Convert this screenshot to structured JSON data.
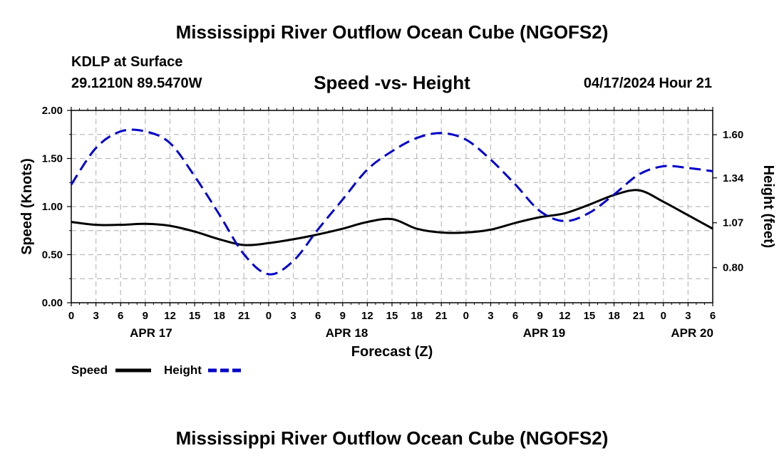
{
  "header": {
    "title": "Mississippi River Outflow Ocean Cube (NGOFS2)",
    "station": "KDLP at Surface",
    "coordinates": "29.1210N  89.5470W",
    "chart_title": "Speed -vs- Height",
    "datetime": "04/17/2024 Hour 21"
  },
  "footer": {
    "title": "Mississippi River Outflow Ocean Cube (NGOFS2)"
  },
  "chart_data": {
    "type": "line",
    "title": "Speed -vs- Height",
    "xlabel": "Forecast (Z)",
    "ylabel": "Speed (Knots)",
    "y2label": "Height (feet)",
    "x_range_hours": [
      0,
      78
    ],
    "ylim": [
      0,
      2
    ],
    "y2lim": [
      0.5886,
      1.7463
    ],
    "yticks": [
      0,
      0.5,
      1,
      1.5,
      2
    ],
    "ytick_labels": [
      "0.00",
      "0.50",
      "1.00",
      "1.50",
      "2.00"
    ],
    "y2ticks": [
      0.8,
      1.07,
      1.34,
      1.6
    ],
    "y2tick_labels": [
      "0.80",
      "1.07",
      "1.34",
      "1.60"
    ],
    "xticks_hours": [
      0,
      3,
      6,
      9,
      12,
      15,
      18,
      21,
      24,
      27,
      30,
      33,
      36,
      39,
      42,
      45,
      48,
      51,
      54,
      57,
      60,
      63,
      66,
      69,
      72,
      75,
      78
    ],
    "xtick_labels": [
      "0",
      "3",
      "6",
      "9",
      "12",
      "15",
      "18",
      "21",
      "0",
      "3",
      "6",
      "9",
      "12",
      "15",
      "18",
      "21",
      "0",
      "3",
      "6",
      "9",
      "12",
      "15",
      "18",
      "21",
      "0",
      "3",
      "6"
    ],
    "date_labels": [
      {
        "label": "APR 17",
        "hour": 9.7
      },
      {
        "label": "APR 18",
        "hour": 33.5
      },
      {
        "label": "APR 19",
        "hour": 57.5
      },
      {
        "label": "APR 20",
        "hour": 75.5
      }
    ],
    "grid": true,
    "legend_position": "bottom-left",
    "series": [
      {
        "name": "Speed",
        "axis": "left",
        "color": "#000000",
        "dash": "solid",
        "x": [
          0,
          3,
          6,
          9,
          12,
          15,
          18,
          21,
          24,
          27,
          30,
          33,
          36,
          39,
          42,
          45,
          48,
          51,
          54,
          57,
          60,
          63,
          66,
          69,
          72,
          75,
          78
        ],
        "values": [
          0.84,
          0.81,
          0.81,
          0.82,
          0.8,
          0.74,
          0.66,
          0.6,
          0.62,
          0.66,
          0.71,
          0.77,
          0.84,
          0.87,
          0.77,
          0.73,
          0.73,
          0.76,
          0.83,
          0.89,
          0.93,
          1.02,
          1.12,
          1.17,
          1.05,
          0.91,
          0.77
        ]
      },
      {
        "name": "Height",
        "axis": "right",
        "color": "#0000cc",
        "dash": "dashed",
        "x": [
          0,
          3,
          6,
          9,
          12,
          15,
          18,
          21,
          24,
          27,
          30,
          33,
          36,
          39,
          42,
          45,
          48,
          51,
          54,
          57,
          60,
          63,
          66,
          69,
          72,
          75,
          78
        ],
        "values": [
          1.3,
          1.52,
          1.62,
          1.62,
          1.55,
          1.35,
          1.12,
          0.88,
          0.76,
          0.84,
          1.03,
          1.21,
          1.39,
          1.5,
          1.58,
          1.61,
          1.57,
          1.45,
          1.3,
          1.14,
          1.08,
          1.13,
          1.24,
          1.36,
          1.41,
          1.4,
          1.38
        ]
      }
    ]
  }
}
